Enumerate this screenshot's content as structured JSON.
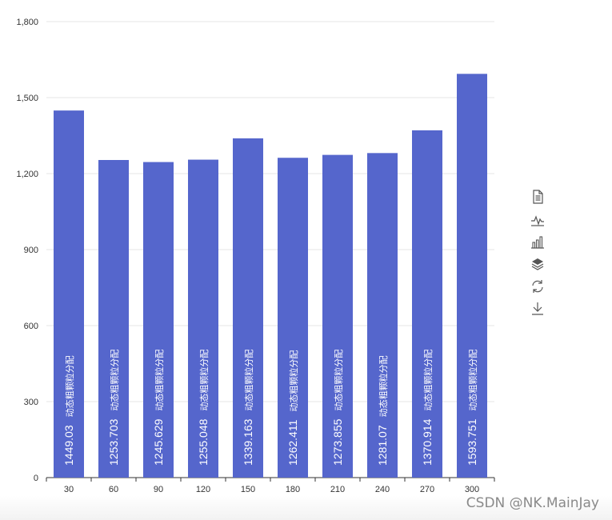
{
  "chart_data": {
    "type": "bar",
    "categories": [
      "30",
      "60",
      "90",
      "120",
      "150",
      "180",
      "210",
      "240",
      "270",
      "300"
    ],
    "series": [
      {
        "name": "动态粗颗粒分配",
        "values": [
          1449.03,
          1253.703,
          1245.629,
          1255.048,
          1339.163,
          1262.411,
          1273.855,
          1281.07,
          1370.914,
          1593.751
        ],
        "labels": [
          "1449.03",
          "1253.703",
          "1245.629",
          "1255.048",
          "1339.163",
          "1262.411",
          "1273.855",
          "1281.07",
          "1370.914",
          "1593.751"
        ],
        "color": "#5566cc"
      }
    ],
    "ylim": [
      0,
      1800
    ],
    "y_ticks": [
      "0",
      "300",
      "600",
      "900",
      "1,200",
      "1,500",
      "1,800"
    ],
    "y_tick_values": [
      0,
      300,
      600,
      900,
      1200,
      1500,
      1800
    ],
    "grid": true,
    "title": "",
    "xlabel": "",
    "ylabel": "",
    "data_label_style": "rotated inside bar: value + series name"
  },
  "toolbox": [
    {
      "name": "data-view",
      "icon": "data-view-icon"
    },
    {
      "name": "line",
      "icon": "line-chart-icon"
    },
    {
      "name": "bar",
      "icon": "bar-chart-icon"
    },
    {
      "name": "stack",
      "icon": "stack-icon"
    },
    {
      "name": "restore",
      "icon": "restore-icon"
    },
    {
      "name": "save-as-image",
      "icon": "download-icon"
    }
  ],
  "watermark": "CSDN @NK.MainJay"
}
